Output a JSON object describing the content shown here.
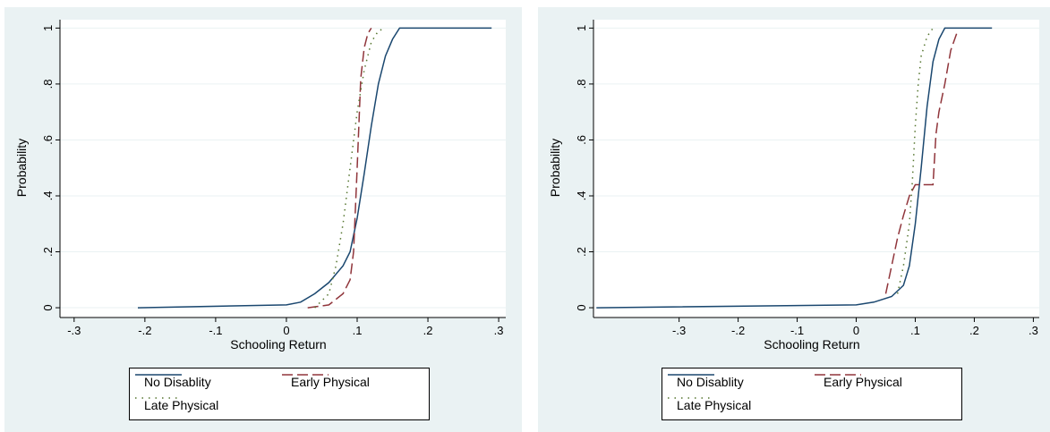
{
  "colors": {
    "no_disability": "#1a476f",
    "early_physical": "#90353b",
    "late_physical": "#55752f",
    "panel_bg": "#eaf2f3",
    "plot_bg": "#ffffff",
    "grid": "#eaf2f3"
  },
  "chart_data": [
    {
      "type": "line",
      "xlabel": "Schooling Return",
      "ylabel": "Probability",
      "xlim": [
        -0.32,
        0.31
      ],
      "ylim": [
        -0.035,
        1.03
      ],
      "xticks": [
        -0.3,
        -0.2,
        -0.1,
        0,
        0.1,
        0.2,
        0.3
      ],
      "xtick_labels": [
        "-.3",
        "-.2",
        "-.1",
        "0",
        ".1",
        ".2",
        ".3"
      ],
      "yticks": [
        0,
        0.2,
        0.4,
        0.6,
        0.8,
        1
      ],
      "ytick_labels": [
        "0",
        ".2",
        ".4",
        ".6",
        ".8",
        "1"
      ],
      "grid": true,
      "legend": {
        "placement": "bottom",
        "entries": [
          "No Disablity",
          "Early Physical",
          "Late Physical"
        ]
      },
      "series": [
        {
          "name": "No Disablity",
          "style": "solid",
          "x": [
            -0.21,
            0.0,
            0.02,
            0.04,
            0.06,
            0.08,
            0.09,
            0.1,
            0.11,
            0.12,
            0.13,
            0.14,
            0.15,
            0.16,
            0.29
          ],
          "y": [
            0,
            0.01,
            0.02,
            0.05,
            0.09,
            0.15,
            0.2,
            0.32,
            0.48,
            0.65,
            0.8,
            0.9,
            0.96,
            1,
            1
          ]
        },
        {
          "name": "Early Physical",
          "style": "dashed",
          "x": [
            0.03,
            0.06,
            0.08,
            0.09,
            0.095,
            0.1,
            0.105,
            0.11,
            0.115,
            0.12
          ],
          "y": [
            0,
            0.01,
            0.05,
            0.1,
            0.2,
            0.5,
            0.82,
            0.93,
            0.98,
            1
          ]
        },
        {
          "name": "Late Physical",
          "style": "dotted",
          "x": [
            0.04,
            0.06,
            0.07,
            0.08,
            0.09,
            0.1,
            0.11,
            0.12,
            0.13,
            0.14
          ],
          "y": [
            0,
            0.05,
            0.15,
            0.3,
            0.5,
            0.7,
            0.85,
            0.95,
            0.99,
            1
          ]
        }
      ]
    },
    {
      "type": "line",
      "xlabel": "Schooling Return",
      "ylabel": "Probability",
      "xlim": [
        -0.445,
        0.31
      ],
      "ylim": [
        -0.035,
        1.03
      ],
      "xticks": [
        -0.3,
        -0.2,
        -0.1,
        0,
        0.1,
        0.2,
        0.3
      ],
      "xtick_labels": [
        "-.3",
        "-.2",
        "-.1",
        "0",
        ".1",
        ".2",
        ".3"
      ],
      "yticks": [
        0,
        0.2,
        0.4,
        0.6,
        0.8,
        1
      ],
      "ytick_labels": [
        "0",
        ".2",
        ".4",
        ".6",
        ".8",
        "1"
      ],
      "grid": true,
      "legend": {
        "placement": "bottom",
        "entries": [
          "No Disablity",
          "Early Physical",
          "Late Physical"
        ]
      },
      "series": [
        {
          "name": "No Disablity",
          "style": "solid",
          "x": [
            -0.44,
            0.0,
            0.03,
            0.06,
            0.08,
            0.09,
            0.1,
            0.11,
            0.12,
            0.13,
            0.14,
            0.15,
            0.16,
            0.23
          ],
          "y": [
            0,
            0.01,
            0.02,
            0.04,
            0.08,
            0.15,
            0.3,
            0.5,
            0.72,
            0.88,
            0.96,
            1,
            1,
            1
          ]
        },
        {
          "name": "Early Physical",
          "style": "dashed",
          "x": [
            0.05,
            0.06,
            0.07,
            0.08,
            0.09,
            0.1,
            0.11,
            0.13,
            0.135,
            0.14,
            0.15,
            0.16,
            0.17
          ],
          "y": [
            0.05,
            0.15,
            0.25,
            0.33,
            0.4,
            0.44,
            0.44,
            0.44,
            0.62,
            0.7,
            0.8,
            0.92,
            0.98
          ]
        },
        {
          "name": "Late Physical",
          "style": "dotted",
          "x": [
            0.07,
            0.08,
            0.09,
            0.095,
            0.1,
            0.105,
            0.11,
            0.12,
            0.13
          ],
          "y": [
            0.05,
            0.15,
            0.3,
            0.45,
            0.65,
            0.8,
            0.9,
            0.97,
            1
          ]
        }
      ]
    }
  ]
}
